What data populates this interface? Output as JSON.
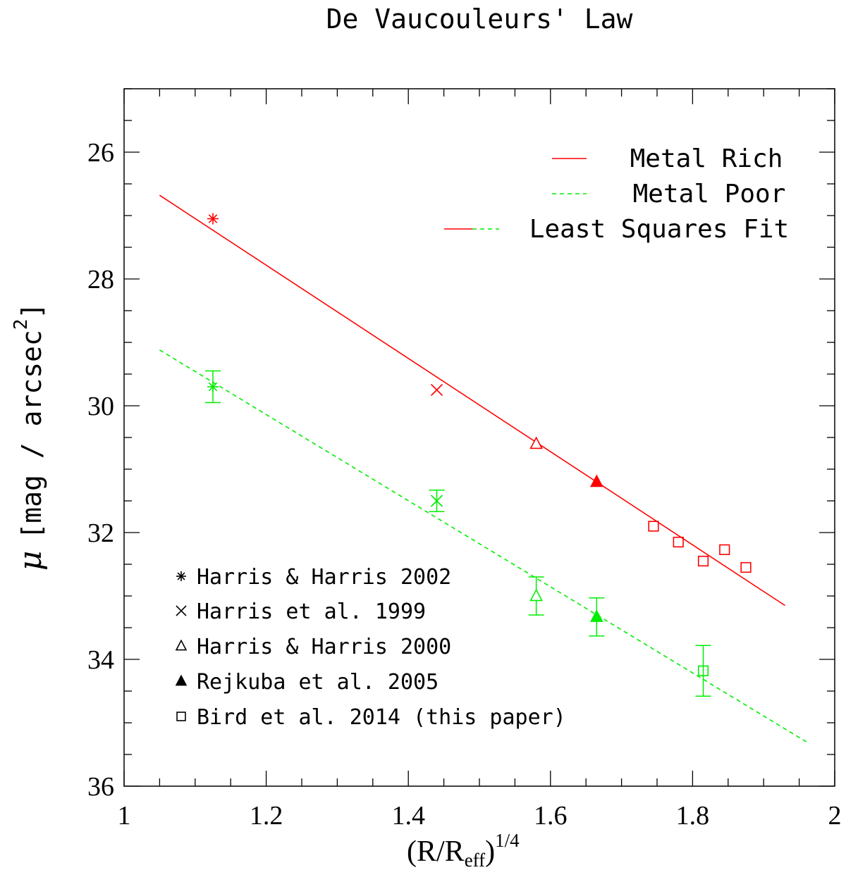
{
  "chart_data": {
    "type": "scatter",
    "title": "De Vaucouleurs' Law",
    "xlabel": "(R/Reff)^1/4",
    "ylabel": "μ [mag / arcsec^2]",
    "xlim": [
      1.0,
      2.0
    ],
    "ylim": [
      36.0,
      25.0
    ],
    "y_inverted": true,
    "x_major_ticks": [
      1,
      1.2,
      1.4,
      1.6,
      1.8,
      2
    ],
    "x_tick_labels": [
      "1",
      "1.2",
      "1.4",
      "1.6",
      "1.8",
      "2"
    ],
    "x_minor_step": 0.05,
    "y_major_ticks": [
      26,
      28,
      30,
      32,
      34,
      36
    ],
    "y_tick_labels": [
      "26",
      "28",
      "30",
      "32",
      "34",
      "36"
    ],
    "y_minor_step": 0.5,
    "colors": {
      "metal_rich": "#ff0000",
      "metal_poor": "#00ee00",
      "axes": "#000000"
    },
    "series": [
      {
        "name": "Metal Rich",
        "color": "#ff0000",
        "fit": {
          "x": [
            1.05,
            1.93
          ],
          "y": [
            26.68,
            33.15
          ]
        },
        "points": [
          {
            "source": "Harris & Harris 2002",
            "marker": "asterisk",
            "x": 1.125,
            "y": 27.05
          },
          {
            "source": "Harris et al. 1999",
            "marker": "cross",
            "x": 1.44,
            "y": 29.75
          },
          {
            "source": "Harris & Harris 2000",
            "marker": "triangle-open",
            "x": 1.58,
            "y": 30.6
          },
          {
            "source": "Rejkuba et al. 2005",
            "marker": "triangle-filled",
            "x": 1.665,
            "y": 31.2
          },
          {
            "source": "Bird et al. 2014 (this paper)",
            "marker": "square-open",
            "x": 1.745,
            "y": 31.9
          },
          {
            "source": "Bird et al. 2014 (this paper)",
            "marker": "square-open",
            "x": 1.78,
            "y": 32.15
          },
          {
            "source": "Bird et al. 2014 (this paper)",
            "marker": "square-open",
            "x": 1.815,
            "y": 32.45
          },
          {
            "source": "Bird et al. 2014 (this paper)",
            "marker": "square-open",
            "x": 1.845,
            "y": 32.27
          },
          {
            "source": "Bird et al. 2014 (this paper)",
            "marker": "square-open",
            "x": 1.875,
            "y": 32.55
          }
        ]
      },
      {
        "name": "Metal Poor",
        "color": "#00ee00",
        "fit": {
          "x": [
            1.05,
            1.96
          ],
          "y": [
            29.12,
            35.3
          ]
        },
        "points": [
          {
            "source": "Harris & Harris 2002",
            "marker": "asterisk",
            "x": 1.125,
            "y": 29.7,
            "err": 0.25
          },
          {
            "source": "Harris et al. 1999",
            "marker": "cross",
            "x": 1.44,
            "y": 31.5,
            "err": 0.17
          },
          {
            "source": "Harris & Harris 2000",
            "marker": "triangle-open",
            "x": 1.58,
            "y": 33.0,
            "err": 0.3
          },
          {
            "source": "Rejkuba et al. 2005",
            "marker": "triangle-filled",
            "x": 1.665,
            "y": 33.33,
            "err": 0.3
          },
          {
            "source": "Bird et al. 2014 (this paper)",
            "marker": "square-open",
            "x": 1.815,
            "y": 34.18,
            "err": 0.4
          }
        ]
      }
    ],
    "legend": [
      {
        "label": "Metal Rich",
        "style": "solid-red"
      },
      {
        "label": "Metal Poor",
        "style": "dashed-green"
      },
      {
        "label": "Least Squares Fit",
        "style": "red-green"
      }
    ],
    "marker_key": [
      {
        "marker": "asterisk",
        "label": "Harris & Harris 2002"
      },
      {
        "marker": "cross",
        "label": "Harris et al. 1999"
      },
      {
        "marker": "triangle-open",
        "label": "Harris & Harris 2000"
      },
      {
        "marker": "triangle-filled",
        "label": "Rejkuba et al. 2005"
      },
      {
        "marker": "square-open",
        "label": "Bird et al. 2014 (this paper)"
      }
    ]
  }
}
